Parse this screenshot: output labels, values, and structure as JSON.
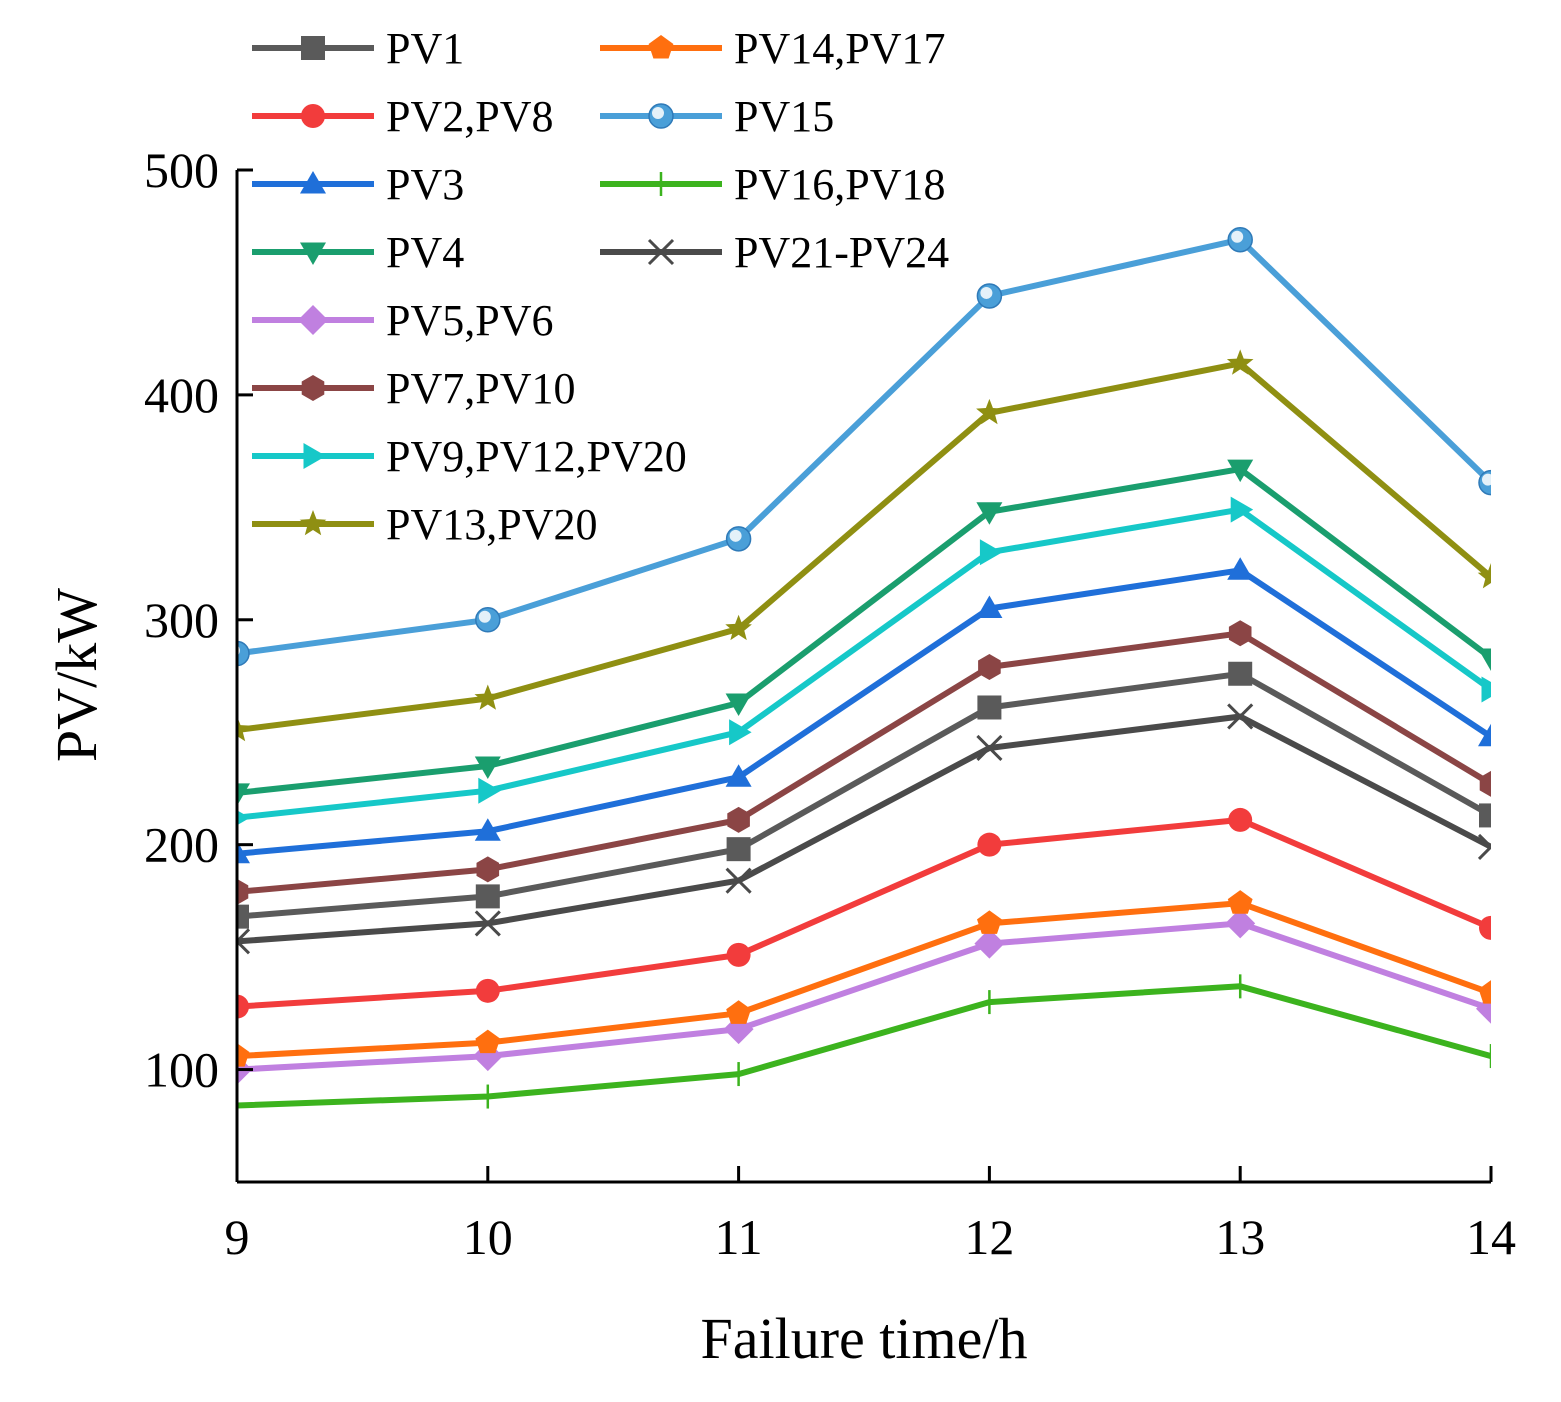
{
  "chart_data": {
    "type": "line",
    "xlabel": "Failure time/h",
    "ylabel": "PV/kW",
    "xlim": [
      9,
      14
    ],
    "ylim": [
      50,
      500
    ],
    "x_ticks": [
      "9",
      "10",
      "11",
      "12",
      "13",
      "14"
    ],
    "y_ticks": [
      "100",
      "200",
      "300",
      "400",
      "500"
    ],
    "x": [
      9,
      10,
      11,
      12,
      13,
      14
    ],
    "grid": false,
    "legend_position": "top-left (inside)",
    "series": [
      {
        "name": "PV1",
        "color": "#5a5a5a",
        "marker": "square",
        "values": [
          168,
          177,
          198,
          261,
          276,
          213
        ]
      },
      {
        "name": "PV2,PV8",
        "color": "#f23c3c",
        "marker": "circle",
        "values": [
          128,
          135,
          151,
          200,
          211,
          163
        ]
      },
      {
        "name": "PV3",
        "color": "#1f6fd9",
        "marker": "triangle-up",
        "values": [
          196,
          206,
          230,
          305,
          322,
          248
        ]
      },
      {
        "name": "PV4",
        "color": "#1a9e6e",
        "marker": "triangle-down",
        "values": [
          223,
          235,
          263,
          348,
          367,
          283
        ]
      },
      {
        "name": "PV5,PV6",
        "color": "#c080e0",
        "marker": "diamond",
        "values": [
          100,
          106,
          118,
          156,
          165,
          127
        ]
      },
      {
        "name": "PV7,PV10",
        "color": "#8b4545",
        "marker": "hexagon",
        "values": [
          179,
          189,
          211,
          279,
          294,
          227
        ]
      },
      {
        "name": "PV9,PV12,PV20",
        "color": "#16c8c8",
        "marker": "triangle-right",
        "values": [
          212,
          224,
          250,
          330,
          349,
          269
        ]
      },
      {
        "name": "PV13,PV20",
        "color": "#8f8f12",
        "marker": "star",
        "values": [
          251,
          265,
          296,
          392,
          414,
          319
        ]
      },
      {
        "name": "PV14,PV17",
        "color": "#ff6f0f",
        "marker": "pentagon",
        "values": [
          106,
          112,
          125,
          165,
          174,
          134
        ]
      },
      {
        "name": "PV15",
        "color": "#4a9fd8",
        "marker": "sphere",
        "values": [
          285,
          300,
          336,
          444,
          469,
          361
        ]
      },
      {
        "name": "PV16,PV18",
        "color": "#3cb31e",
        "marker": "plus",
        "values": [
          84,
          88,
          98,
          130,
          137,
          106
        ]
      },
      {
        "name": "PV21-PV24",
        "color": "#4a4a4a",
        "marker": "x",
        "values": [
          157,
          165,
          184,
          243,
          257,
          199
        ]
      }
    ],
    "legend": {
      "columns": [
        [
          "PV1",
          "PV2,PV8",
          "PV3",
          "PV4",
          "PV5,PV6",
          "PV7,PV10",
          "PV9,PV12,PV20",
          "PV13,PV20"
        ],
        [
          "PV14,PV17",
          "PV15",
          "PV16,PV18",
          "PV21-PV24"
        ]
      ]
    }
  }
}
